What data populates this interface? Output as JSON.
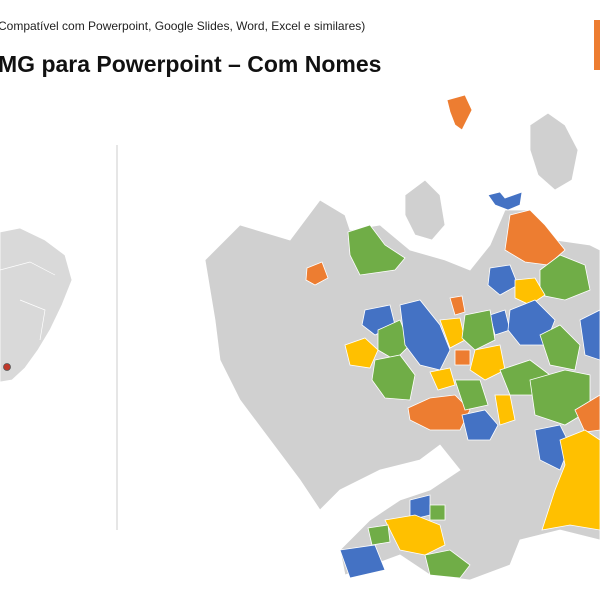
{
  "header": {
    "subtitle": "Compatível com Powerpoint, Google Slides, Word, Excel e similares)",
    "title": "MG para Powerpoint – Com Nomes"
  }
}
